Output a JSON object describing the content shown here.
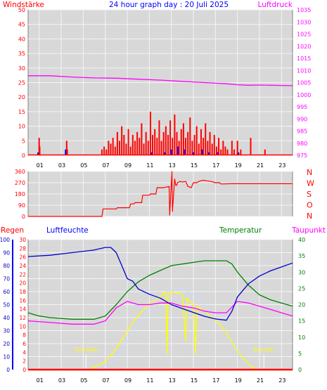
{
  "header": {
    "left_label": "Windstärke",
    "title": "24 hour graph day : 20 Juli 2025",
    "right_label": "Luftdruck"
  },
  "colors": {
    "wind": "#ff0000",
    "gust": "#0000ff",
    "pressure": "#ff00ff",
    "direction": "#ff0000",
    "rain": "#ff0000",
    "humidity": "#0000c8",
    "temperature": "#008000",
    "dewpoint": "#ff00ff",
    "solar": "#ffff00",
    "uv": "#c8dcff",
    "panel_bg": "#d8d8d8",
    "grid": "#f4f4f4"
  },
  "chart_data": [
    {
      "type": "line",
      "panel": "wind-pressure",
      "x_ticks": [
        "01",
        "03",
        "05",
        "07",
        "09",
        "11",
        "13",
        "15",
        "17",
        "19",
        "21",
        "23"
      ],
      "xlim": [
        0,
        24
      ],
      "left_axis": {
        "ylim": [
          0,
          50
        ],
        "ticks": [
          0,
          5,
          10,
          15,
          20,
          25,
          30,
          35,
          40,
          45,
          50
        ]
      },
      "right_axis": {
        "ylim": [
          975,
          1035
        ],
        "ticks": [
          975,
          980,
          985,
          990,
          995,
          1000,
          1005,
          1010,
          1015,
          1020,
          1025,
          1030,
          1035
        ]
      },
      "series": [
        {
          "name": "Luftdruck",
          "axis": "right",
          "x": [
            0,
            2,
            4,
            6,
            8,
            10,
            12,
            14,
            16,
            18,
            19,
            20,
            21,
            22,
            23,
            24
          ],
          "y": [
            1007.8,
            1007.8,
            1007.3,
            1006.9,
            1006.8,
            1006.4,
            1006.0,
            1005.5,
            1005.0,
            1004.5,
            1004.1,
            1003.9,
            1004.0,
            1003.9,
            1003.8,
            1003.7
          ]
        }
      ],
      "bar_series": [
        {
          "name": "Windstärke",
          "axis": "left",
          "x": [
            1.0,
            1.05,
            3.5,
            3.55,
            6.7,
            6.9,
            7.1,
            7.3,
            7.5,
            7.7,
            7.9,
            8.1,
            8.3,
            8.5,
            8.7,
            8.9,
            9.1,
            9.3,
            9.5,
            9.7,
            9.9,
            10.1,
            10.3,
            10.5,
            10.7,
            10.9,
            11.1,
            11.3,
            11.5,
            11.7,
            11.9,
            12.1,
            12.3,
            12.5,
            12.7,
            12.9,
            13.1,
            13.3,
            13.5,
            13.7,
            13.9,
            14.1,
            14.3,
            14.5,
            14.7,
            14.9,
            15.1,
            15.3,
            15.5,
            15.7,
            15.9,
            16.1,
            16.3,
            16.5,
            16.7,
            16.9,
            17.1,
            17.3,
            17.5,
            17.7,
            17.9,
            18.1,
            18.5,
            18.7,
            19.0,
            19.3,
            20.2,
            21.5
          ],
          "y": [
            6,
            3,
            5,
            2,
            2,
            3,
            2,
            5,
            4,
            6,
            3,
            8,
            5,
            10,
            7,
            4,
            9,
            3,
            7,
            5,
            8,
            6,
            11,
            4,
            8,
            5,
            15,
            7,
            9,
            6,
            12,
            5,
            8,
            10,
            7,
            12,
            6,
            14,
            8,
            5,
            9,
            11,
            6,
            8,
            13,
            5,
            7,
            10,
            4,
            9,
            6,
            11,
            5,
            8,
            4,
            7,
            3,
            6,
            2,
            5,
            3,
            2,
            5,
            2,
            5,
            2,
            6,
            2
          ]
        },
        {
          "name": "Böen",
          "axis": "left",
          "x": [
            0.9,
            3.4,
            11.2,
            12.4,
            13.0,
            13.6,
            14.2,
            15.0,
            15.8,
            16.4,
            17.2,
            19.1
          ],
          "y": [
            1,
            2,
            1,
            1,
            2,
            3,
            2,
            1,
            2,
            1,
            1,
            1
          ]
        }
      ]
    },
    {
      "type": "line",
      "panel": "wind-direction",
      "xlim": [
        0,
        24
      ],
      "left_axis": {
        "ylim": [
          0,
          360
        ],
        "ticks": [
          0,
          90,
          180,
          270,
          360
        ]
      },
      "right_axis_labels": [
        "N",
        "W",
        "S",
        "O",
        "N"
      ],
      "series": [
        {
          "name": "Windrichtung",
          "x": [
            0,
            6.7,
            6.8,
            8.0,
            8.1,
            9.2,
            9.3,
            9.6,
            9.7,
            10.3,
            10.4,
            11.0,
            11.1,
            11.6,
            11.7,
            12.2,
            12.3,
            12.8,
            12.85,
            13.05,
            13.1,
            13.3,
            13.4,
            13.5,
            13.55,
            13.8,
            14.0,
            14.3,
            14.5,
            14.8,
            15.0,
            15.3,
            15.5,
            15.9,
            16.2,
            16.6,
            17.0,
            17.4,
            17.5,
            18.5,
            24
          ],
          "y": [
            0,
            0,
            60,
            60,
            70,
            70,
            100,
            100,
            110,
            110,
            170,
            170,
            180,
            180,
            230,
            230,
            230,
            240,
            10,
            360,
            40,
            300,
            250,
            250,
            270,
            280,
            275,
            280,
            240,
            230,
            270,
            270,
            280,
            290,
            285,
            280,
            270,
            270,
            260,
            262,
            262
          ]
        }
      ]
    },
    {
      "type": "line",
      "panel": "temperature-humidity",
      "labels": {
        "regen": "Regen",
        "humidity": "Luftfeuchte",
        "temperature": "Temperatur",
        "dewpoint": "Taupunkt",
        "sunrise": "Sun Rise",
        "sunset": "Sun Set"
      },
      "x_ticks": [
        "01",
        "03",
        "05",
        "07",
        "09",
        "11",
        "13",
        "15",
        "17",
        "19",
        "21",
        "23"
      ],
      "xlim": [
        0,
        24
      ],
      "sunrise_x": 5.25,
      "sunset_x": 21.4,
      "axes": {
        "humidity": {
          "ylim": [
            0,
            100
          ],
          "ticks": [
            0,
            10,
            20,
            30,
            40,
            50,
            60,
            70,
            80,
            90,
            100
          ]
        },
        "rain": {
          "ylim": [
            0,
            30
          ],
          "ticks": [
            0,
            2,
            4,
            6,
            8,
            10,
            12,
            14,
            16,
            18,
            20,
            22,
            24,
            26,
            28,
            30
          ]
        },
        "temperature": {
          "ylim": [
            0,
            40
          ],
          "ticks": [
            0,
            5,
            10,
            15,
            20,
            25,
            30,
            35,
            40
          ]
        }
      },
      "series": [
        {
          "name": "Luftfeuchte",
          "axis": "humidity",
          "x": [
            0,
            2,
            4,
            6,
            7,
            7.5,
            8,
            8.5,
            9,
            9.5,
            10,
            11,
            12,
            13,
            14,
            15,
            16,
            17,
            18,
            18.5,
            19,
            20,
            21,
            22,
            23,
            24
          ],
          "y": [
            87,
            88,
            90,
            92,
            94,
            94,
            90,
            80,
            70,
            68,
            62,
            58,
            55,
            50,
            47,
            44,
            41,
            39,
            38,
            45,
            56,
            66,
            72,
            76,
            79,
            82
          ]
        },
        {
          "name": "Temperatur",
          "axis": "temperature",
          "x": [
            0,
            1,
            2,
            4,
            6,
            7,
            8,
            9,
            10,
            11,
            12,
            13,
            14,
            15,
            16,
            17,
            18,
            18.5,
            19,
            20,
            21,
            22,
            23,
            24
          ],
          "y": [
            17.5,
            16.5,
            16,
            15.5,
            15.5,
            16.5,
            20,
            24,
            27,
            29,
            30.5,
            32,
            32.5,
            33,
            33.5,
            33.5,
            33.5,
            32.5,
            30,
            26,
            23,
            21.5,
            20.5,
            19.5
          ]
        },
        {
          "name": "Taupunkt",
          "axis": "temperature",
          "x": [
            0,
            2,
            4,
            6,
            7,
            8,
            9,
            10,
            11,
            12,
            13,
            14,
            15,
            16,
            17,
            18,
            19,
            20,
            21,
            22,
            23,
            24
          ],
          "y": [
            15,
            14.5,
            14,
            14,
            15,
            19,
            21,
            20,
            20,
            20.5,
            20.5,
            19.5,
            19,
            18,
            17.5,
            17.5,
            21,
            20.5,
            19.5,
            18.5,
            17.5,
            16.5
          ]
        },
        {
          "name": "Solar",
          "axis": "humidity",
          "x": [
            0,
            5.5,
            6,
            7,
            8,
            9,
            10,
            11,
            12,
            12.5,
            12.6,
            12.7,
            13,
            14,
            14.3,
            14.4,
            14.5,
            15,
            15.2,
            15.3,
            15.4,
            16,
            17,
            17.5,
            18,
            19,
            20,
            20.5,
            21,
            24
          ],
          "y": [
            0,
            0,
            2,
            6,
            16,
            30,
            42,
            50,
            56,
            60,
            12,
            58,
            60,
            58,
            22,
            55,
            54,
            50,
            12,
            48,
            48,
            45,
            38,
            34,
            28,
            14,
            4,
            1,
            0,
            0
          ]
        },
        {
          "name": "UV",
          "axis": "humidity",
          "x": [
            0,
            6,
            8,
            9,
            10,
            11,
            12,
            13,
            14,
            15,
            16,
            17,
            18,
            19,
            20,
            24
          ],
          "y": [
            0,
            0,
            8,
            22,
            35,
            48,
            56,
            62,
            62,
            58,
            50,
            40,
            28,
            12,
            0,
            0
          ]
        },
        {
          "name": "Regen",
          "axis": "rain",
          "x": [
            0,
            24
          ],
          "y": [
            0,
            0
          ]
        }
      ]
    }
  ]
}
